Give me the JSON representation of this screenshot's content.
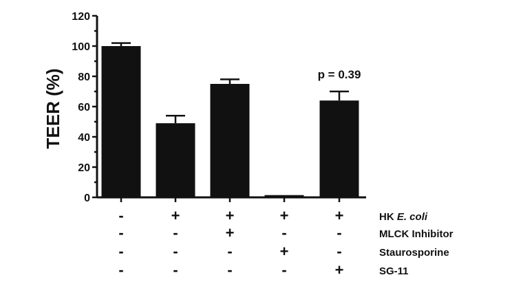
{
  "chart_data": {
    "type": "bar",
    "title": "",
    "xlabel": "",
    "ylabel": "TEER (%)",
    "ylim": [
      0,
      120
    ],
    "yticks": [
      0,
      20,
      40,
      60,
      80,
      100,
      120
    ],
    "grid": false,
    "legend": null,
    "categories": [
      "Control",
      "HK E. coli",
      "HK E. coli + MLCK Inhibitor",
      "HK E. coli + Staurosporine",
      "HK E. coli + SG-11"
    ],
    "values": [
      100,
      49,
      75,
      1.5,
      64
    ],
    "error_upper": [
      102,
      54,
      78,
      2,
      70
    ],
    "bar_color": "#111111",
    "annotations": [
      {
        "bar_index": 4,
        "text": "p = 0.39"
      }
    ],
    "condition_table": {
      "rows": [
        {
          "label": "HK E. coli",
          "label_plain": "HK ",
          "label_italic": "E. coli",
          "signs": [
            "-",
            "+",
            "+",
            "+",
            "+"
          ]
        },
        {
          "label": "MLCK Inhibitor",
          "signs": [
            "-",
            "-",
            "+",
            "-",
            "-"
          ]
        },
        {
          "label": "Staurosporine",
          "signs": [
            "-",
            "-",
            "-",
            "+",
            "-"
          ]
        },
        {
          "label": "SG-11",
          "signs": [
            "-",
            "-",
            "-",
            "-",
            "+"
          ]
        }
      ]
    }
  }
}
